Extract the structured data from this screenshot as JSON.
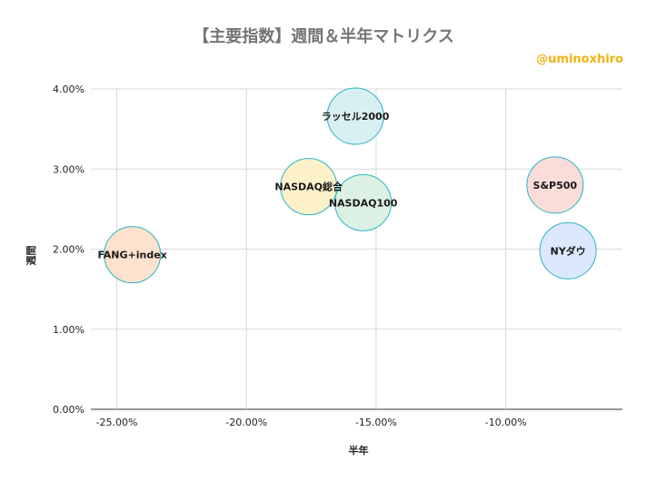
{
  "chart_data": {
    "type": "bubble",
    "title": "【主要指数】週間＆半年マトリクス",
    "credit": "@uminoxhiro",
    "xlabel": "半年",
    "ylabel": "週間",
    "xlim": [
      -0.26,
      -0.055
    ],
    "ylim": [
      0,
      0.04
    ],
    "x_ticks": [
      -0.25,
      -0.2,
      -0.15,
      -0.1
    ],
    "x_tick_labels": [
      "-25.00%",
      "-20.00%",
      "-15.00%",
      "-10.00%"
    ],
    "y_ticks": [
      0,
      0.01,
      0.02,
      0.03,
      0.04
    ],
    "y_tick_labels": [
      "0.00%",
      "1.00%",
      "2.00%",
      "3.00%",
      "4.00%"
    ],
    "grid": true,
    "series": [
      {
        "label": "ラッセル2000",
        "x": -0.158,
        "y": 0.0366,
        "color": "#d6eff1",
        "stroke": "#29b6c6"
      },
      {
        "label": "NASDAQ総合",
        "x": -0.176,
        "y": 0.0278,
        "color": "#fdf0c6",
        "stroke": "#29b6c6"
      },
      {
        "label": "NASDAQ100",
        "x": -0.155,
        "y": 0.0258,
        "color": "#d9f0e1",
        "stroke": "#29b6c6"
      },
      {
        "label": "S&P500",
        "x": -0.081,
        "y": 0.028,
        "color": "#fad9d6",
        "stroke": "#29b6c6"
      },
      {
        "label": "NYダウ",
        "x": -0.076,
        "y": 0.0198,
        "color": "#d9e6fb",
        "stroke": "#29b6c6"
      },
      {
        "label": "FANG+index",
        "x": -0.244,
        "y": 0.0193,
        "color": "#fde0c9",
        "stroke": "#29b6c6"
      }
    ]
  }
}
